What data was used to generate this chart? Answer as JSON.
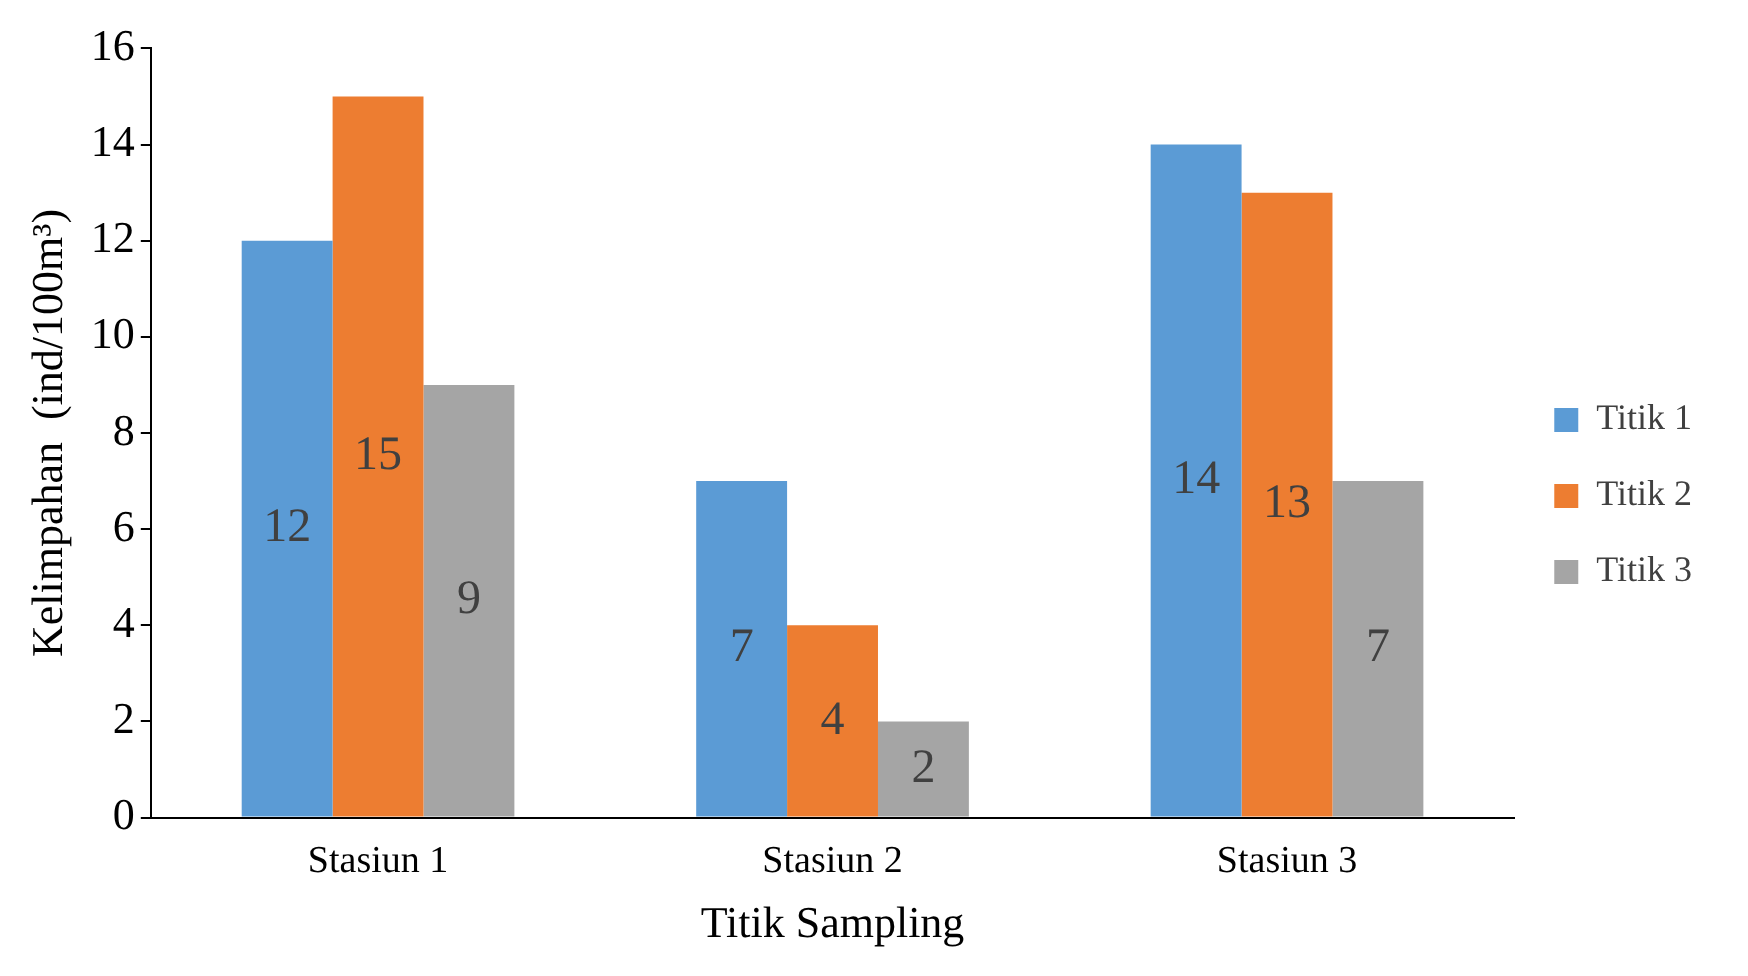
{
  "chart_data": {
    "type": "bar",
    "xlabel": "Titik Sampling",
    "ylabel": "Kelimpahan  (ind/100m³)",
    "categories": [
      "Stasiun 1",
      "Stasiun 2",
      "Stasiun 3"
    ],
    "series": [
      {
        "name": "Titik 1",
        "color": "#5b9bd5",
        "values": [
          12,
          7,
          14
        ]
      },
      {
        "name": "Titik 2",
        "color": "#ed7d31",
        "values": [
          15,
          4,
          13
        ]
      },
      {
        "name": "Titik 3",
        "color": "#a5a5a5",
        "values": [
          9,
          2,
          7
        ]
      }
    ],
    "ylim": [
      0,
      16
    ],
    "yticks": [
      0,
      2,
      4,
      6,
      8,
      10,
      12,
      14,
      16
    ],
    "grid": false,
    "legend": "right",
    "data_labels": true
  }
}
